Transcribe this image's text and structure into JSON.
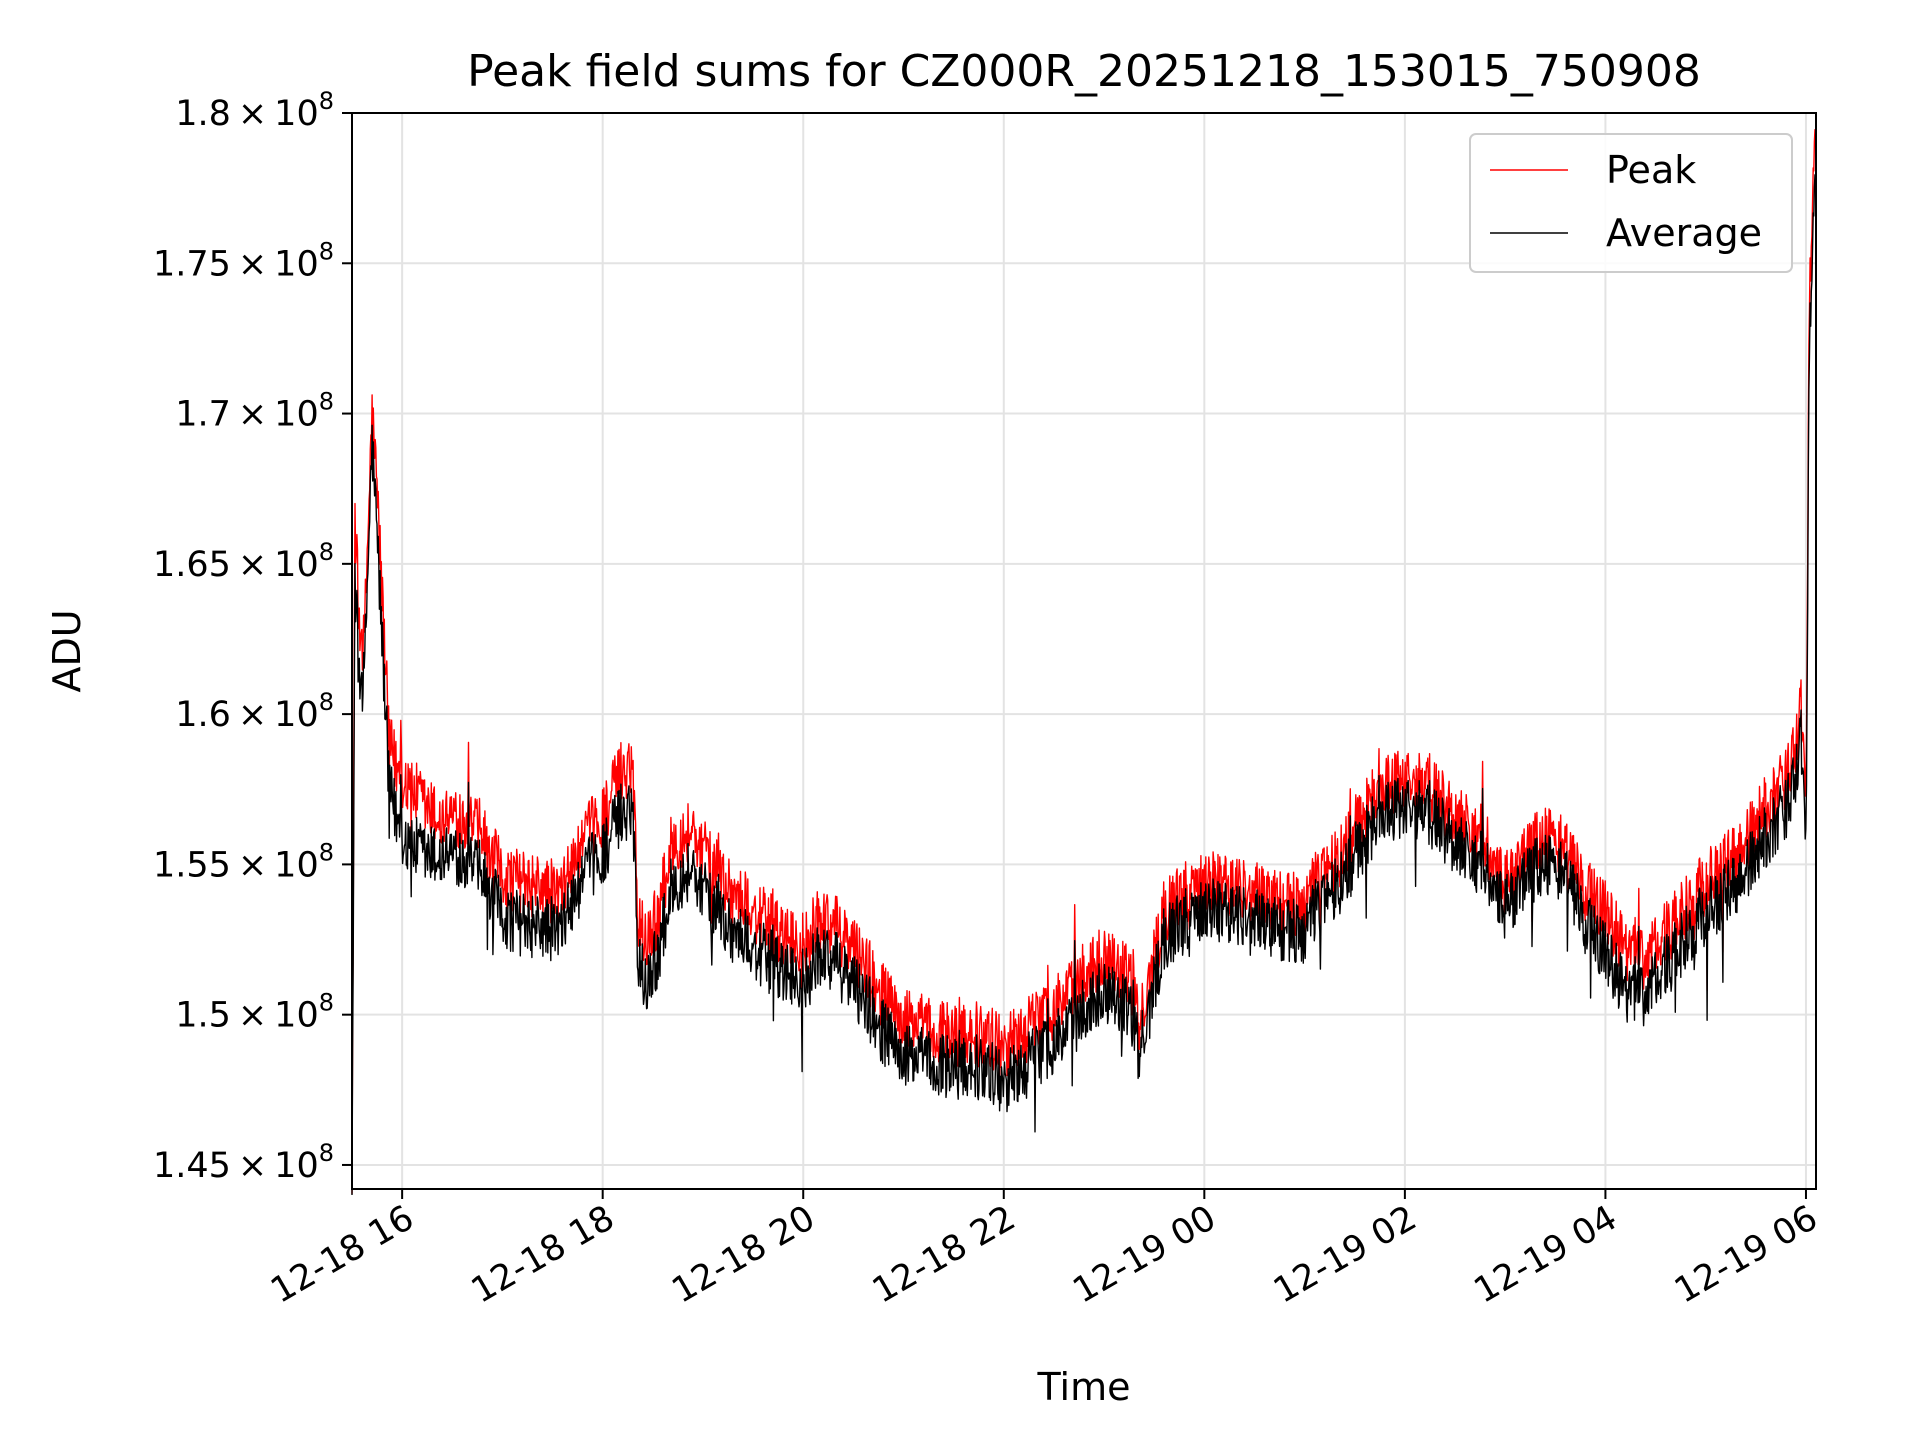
{
  "chart_data": {
    "type": "line",
    "title": "Peak field sums for CZ000R_20251218_153015_750908",
    "xlabel": "Time",
    "ylabel": "ADU",
    "grid": true,
    "legend_position": "top-right",
    "xlim_hours": [
      15.5,
      30.1
    ],
    "ylim": [
      144200000,
      180000000
    ],
    "x_ticks": [
      {
        "label": "12-18 16",
        "hour": 16
      },
      {
        "label": "12-18 18",
        "hour": 18
      },
      {
        "label": "12-18 20",
        "hour": 20
      },
      {
        "label": "12-18 22",
        "hour": 22
      },
      {
        "label": "12-19 00",
        "hour": 24
      },
      {
        "label": "12-19 02",
        "hour": 26
      },
      {
        "label": "12-19 04",
        "hour": 28
      },
      {
        "label": "12-19 06",
        "hour": 30
      }
    ],
    "y_ticks": [
      {
        "mantissa": "1.45",
        "value": 145000000
      },
      {
        "mantissa": "1.5",
        "value": 150000000
      },
      {
        "mantissa": "1.55",
        "value": 155000000
      },
      {
        "mantissa": "1.6",
        "value": 160000000
      },
      {
        "mantissa": "1.65",
        "value": 165000000
      },
      {
        "mantissa": "1.7",
        "value": 170000000
      },
      {
        "mantissa": "1.75",
        "value": 175000000
      },
      {
        "mantissa": "1.8",
        "value": 180000000
      }
    ],
    "y_tick_suffix": {
      "times": "×",
      "base": "10",
      "exponent": "8"
    },
    "series": [
      {
        "name": "Peak",
        "color": "#ff0000",
        "x_hours": [
          15.5,
          15.53,
          15.57,
          15.62,
          15.7,
          15.75,
          15.8,
          15.87,
          15.95,
          16.05,
          16.2,
          16.4,
          16.6,
          16.8,
          17.0,
          17.2,
          17.4,
          17.6,
          17.8,
          18.0,
          18.2,
          18.3,
          18.35,
          18.42,
          18.55,
          18.7,
          18.9,
          19.1,
          19.3,
          19.55,
          19.8,
          20.0,
          20.2,
          20.4,
          20.6,
          20.8,
          21.0,
          21.2,
          21.4,
          21.6,
          21.8,
          22.0,
          22.2,
          22.4,
          22.6,
          22.8,
          23.0,
          23.15,
          23.25,
          23.35,
          23.6,
          23.8,
          24.0,
          24.2,
          24.4,
          24.6,
          24.8,
          25.0,
          25.2,
          25.4,
          25.6,
          25.8,
          26.0,
          26.2,
          26.4,
          26.6,
          26.8,
          26.9,
          27.0,
          27.2,
          27.4,
          27.6,
          27.8,
          28.0,
          28.1,
          28.2,
          28.4,
          28.6,
          28.8,
          29.0,
          29.2,
          29.4,
          29.6,
          29.8,
          29.9,
          29.95,
          30.0,
          30.03,
          30.06,
          30.09
        ],
        "values": [
          145100000,
          166500000,
          163200000,
          162200000,
          170000000,
          167500000,
          164000000,
          159000000,
          158200000,
          157800000,
          157000000,
          156400000,
          156700000,
          156000000,
          154600000,
          154400000,
          154200000,
          154000000,
          155800000,
          156600000,
          158200000,
          158400000,
          153500000,
          152500000,
          153300000,
          155800000,
          156200000,
          155000000,
          154100000,
          153300000,
          152600000,
          152300000,
          153300000,
          152600000,
          151800000,
          150600000,
          149800000,
          149600000,
          149400000,
          149500000,
          149300000,
          149000000,
          149400000,
          150000000,
          150500000,
          151300000,
          152000000,
          151600000,
          151400000,
          149500000,
          153500000,
          154000000,
          154600000,
          154300000,
          154200000,
          154000000,
          153700000,
          153600000,
          154900000,
          155500000,
          156800000,
          157700000,
          157800000,
          157700000,
          157000000,
          156400000,
          155800000,
          154700000,
          154300000,
          155400000,
          156000000,
          155500000,
          154100000,
          153600000,
          152800000,
          152400000,
          152000000,
          152700000,
          153500000,
          154400000,
          155000000,
          155700000,
          156900000,
          157800000,
          159200000,
          160500000,
          157000000,
          173000000,
          177000000,
          180000000
        ]
      },
      {
        "name": "Average",
        "color": "#000000",
        "x_hours": [
          15.5,
          15.53,
          15.57,
          15.62,
          15.7,
          15.75,
          15.8,
          15.87,
          15.95,
          16.05,
          16.2,
          16.4,
          16.6,
          16.8,
          17.0,
          17.2,
          17.4,
          17.6,
          17.8,
          18.0,
          18.2,
          18.3,
          18.35,
          18.42,
          18.55,
          18.7,
          18.9,
          19.1,
          19.3,
          19.55,
          19.8,
          20.0,
          20.2,
          20.4,
          20.6,
          20.8,
          21.0,
          21.2,
          21.4,
          21.6,
          21.8,
          22.0,
          22.2,
          22.4,
          22.6,
          22.8,
          23.0,
          23.15,
          23.25,
          23.35,
          23.6,
          23.8,
          24.0,
          24.2,
          24.4,
          24.6,
          24.8,
          25.0,
          25.2,
          25.4,
          25.6,
          25.8,
          26.0,
          26.2,
          26.4,
          26.6,
          26.8,
          26.9,
          27.0,
          27.2,
          27.4,
          27.6,
          27.8,
          28.0,
          28.1,
          28.2,
          28.4,
          28.6,
          28.8,
          29.0,
          29.2,
          29.4,
          29.6,
          29.8,
          29.9,
          29.95,
          30.0,
          30.03,
          30.06,
          30.09
        ],
        "values": [
          144500000,
          164500000,
          161500000,
          161000000,
          169000000,
          166000000,
          162500000,
          157500000,
          156500000,
          155800000,
          155300000,
          155200000,
          155400000,
          154600000,
          153300000,
          153000000,
          152900000,
          152800000,
          154600000,
          155400000,
          156800000,
          157000000,
          152200000,
          151000000,
          152000000,
          154400000,
          154900000,
          153600000,
          152800000,
          152100000,
          151400000,
          151100000,
          152100000,
          151400000,
          150600000,
          149400000,
          148600000,
          148500000,
          148300000,
          148400000,
          148200000,
          147800000,
          148200000,
          148900000,
          149300000,
          150100000,
          150900000,
          150500000,
          150300000,
          148600000,
          152600000,
          153100000,
          153700000,
          153400000,
          153300000,
          153100000,
          152800000,
          152700000,
          154000000,
          154600000,
          155900000,
          156800000,
          156900000,
          156800000,
          156100000,
          155500000,
          154900000,
          153900000,
          153500000,
          154600000,
          155100000,
          154600000,
          153000000,
          152200000,
          151400000,
          151000000,
          150800000,
          151600000,
          152500000,
          153400000,
          154000000,
          154700000,
          155900000,
          156800000,
          158200000,
          159500000,
          155500000,
          171500000,
          175500000,
          178500000
        ]
      }
    ]
  }
}
